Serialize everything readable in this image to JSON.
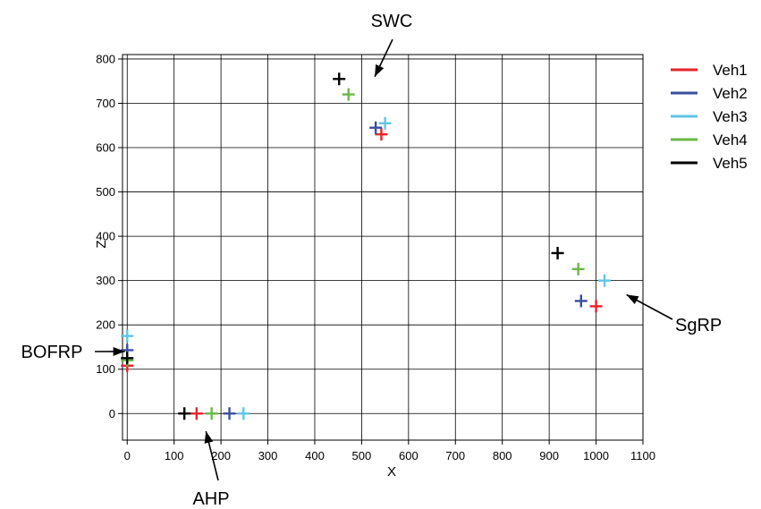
{
  "chart_data": {
    "type": "scatter",
    "xlabel": "X",
    "ylabel": "Z",
    "xlim": [
      -10,
      1100
    ],
    "ylim": [
      -60,
      810
    ],
    "xticks": [
      0,
      100,
      200,
      300,
      400,
      500,
      600,
      700,
      800,
      900,
      1000,
      1100
    ],
    "yticks": [
      0,
      100,
      200,
      300,
      400,
      500,
      600,
      700,
      800
    ],
    "xtick_labels": [
      "0",
      "100",
      "200",
      "300",
      "400",
      "500",
      "600",
      "700",
      "800",
      "900",
      "1000",
      "1100"
    ],
    "ytick_labels": [
      "0",
      "100",
      "200",
      "300",
      "400",
      "500",
      "600",
      "700",
      "800"
    ],
    "grid": true,
    "marker": "plus",
    "legend_position": "right",
    "series": [
      {
        "name": "Veh1",
        "color": "#e8242a",
        "points": [
          [
            542,
            630
          ],
          [
            1000,
            242
          ],
          [
            0,
            108
          ],
          [
            148,
            0
          ]
        ]
      },
      {
        "name": "Veh2",
        "color": "#3a4fa0",
        "points": [
          [
            530,
            645
          ],
          [
            968,
            254
          ],
          [
            0,
            143
          ],
          [
            218,
            0
          ]
        ]
      },
      {
        "name": "Veh3",
        "color": "#5ec6e4",
        "points": [
          [
            550,
            655
          ],
          [
            1018,
            300
          ],
          [
            0,
            175
          ],
          [
            248,
            0
          ]
        ]
      },
      {
        "name": "Veh4",
        "color": "#6ab945",
        "points": [
          [
            472,
            720
          ],
          [
            962,
            326
          ],
          [
            0,
            120
          ],
          [
            180,
            0
          ]
        ]
      },
      {
        "name": "Veh5",
        "color": "#000000",
        "points": [
          [
            452,
            755
          ],
          [
            918,
            362
          ],
          [
            0,
            125
          ],
          [
            122,
            0
          ]
        ]
      }
    ],
    "annotations": [
      {
        "text": "SWC",
        "target": [
          528,
          760
        ]
      },
      {
        "text": "SgRP",
        "target": [
          1065,
          268
        ]
      },
      {
        "text": "BOFRP",
        "target": [
          -5,
          140
        ]
      },
      {
        "text": "AHP",
        "target": [
          168,
          -40
        ]
      }
    ]
  }
}
